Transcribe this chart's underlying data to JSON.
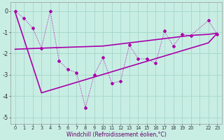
{
  "xlabel": "Windchill (Refroidissement éolien,°C)",
  "bg_color": "#c8eee4",
  "grid_color": "#aad8cc",
  "line_color": "#aa00aa",
  "xlim": [
    -0.5,
    23.5
  ],
  "ylim": [
    -5.3,
    0.4
  ],
  "yticks": [
    0,
    -1,
    -2,
    -3,
    -4,
    -5
  ],
  "xtick_labels": [
    "0",
    "1",
    "2",
    "3",
    "4",
    "5",
    "6",
    "7",
    "8",
    "9",
    "10",
    "11",
    "12",
    "13",
    "14",
    "15",
    "16",
    "17",
    "18",
    "19",
    "20",
    "",
    "22",
    "23"
  ],
  "series1_x": [
    0,
    1,
    2,
    3,
    4,
    5,
    6,
    7,
    8,
    9,
    10,
    11,
    12,
    13,
    14,
    15,
    16,
    17,
    18,
    19,
    20,
    22,
    23
  ],
  "series1_y": [
    0.0,
    -0.35,
    -0.8,
    -1.75,
    0.0,
    -2.35,
    -2.75,
    -2.9,
    -4.55,
    -3.0,
    -2.2,
    -3.4,
    -3.3,
    -1.6,
    -2.25,
    -2.25,
    -2.45,
    -0.95,
    -1.65,
    -1.1,
    -1.15,
    -0.45,
    -1.1
  ],
  "series2_x": [
    0,
    3,
    10,
    11,
    12,
    13,
    14,
    15,
    16,
    17,
    18,
    19,
    20,
    22,
    23
  ],
  "series2_y": [
    -1.8,
    -1.75,
    -1.65,
    -1.6,
    -1.55,
    -1.5,
    -1.45,
    -1.4,
    -1.35,
    -1.3,
    -1.25,
    -1.2,
    -1.15,
    -1.1,
    -1.05
  ],
  "series3_x": [
    0,
    3,
    22,
    23
  ],
  "series3_y": [
    -0.05,
    -3.85,
    -1.5,
    -1.05
  ]
}
